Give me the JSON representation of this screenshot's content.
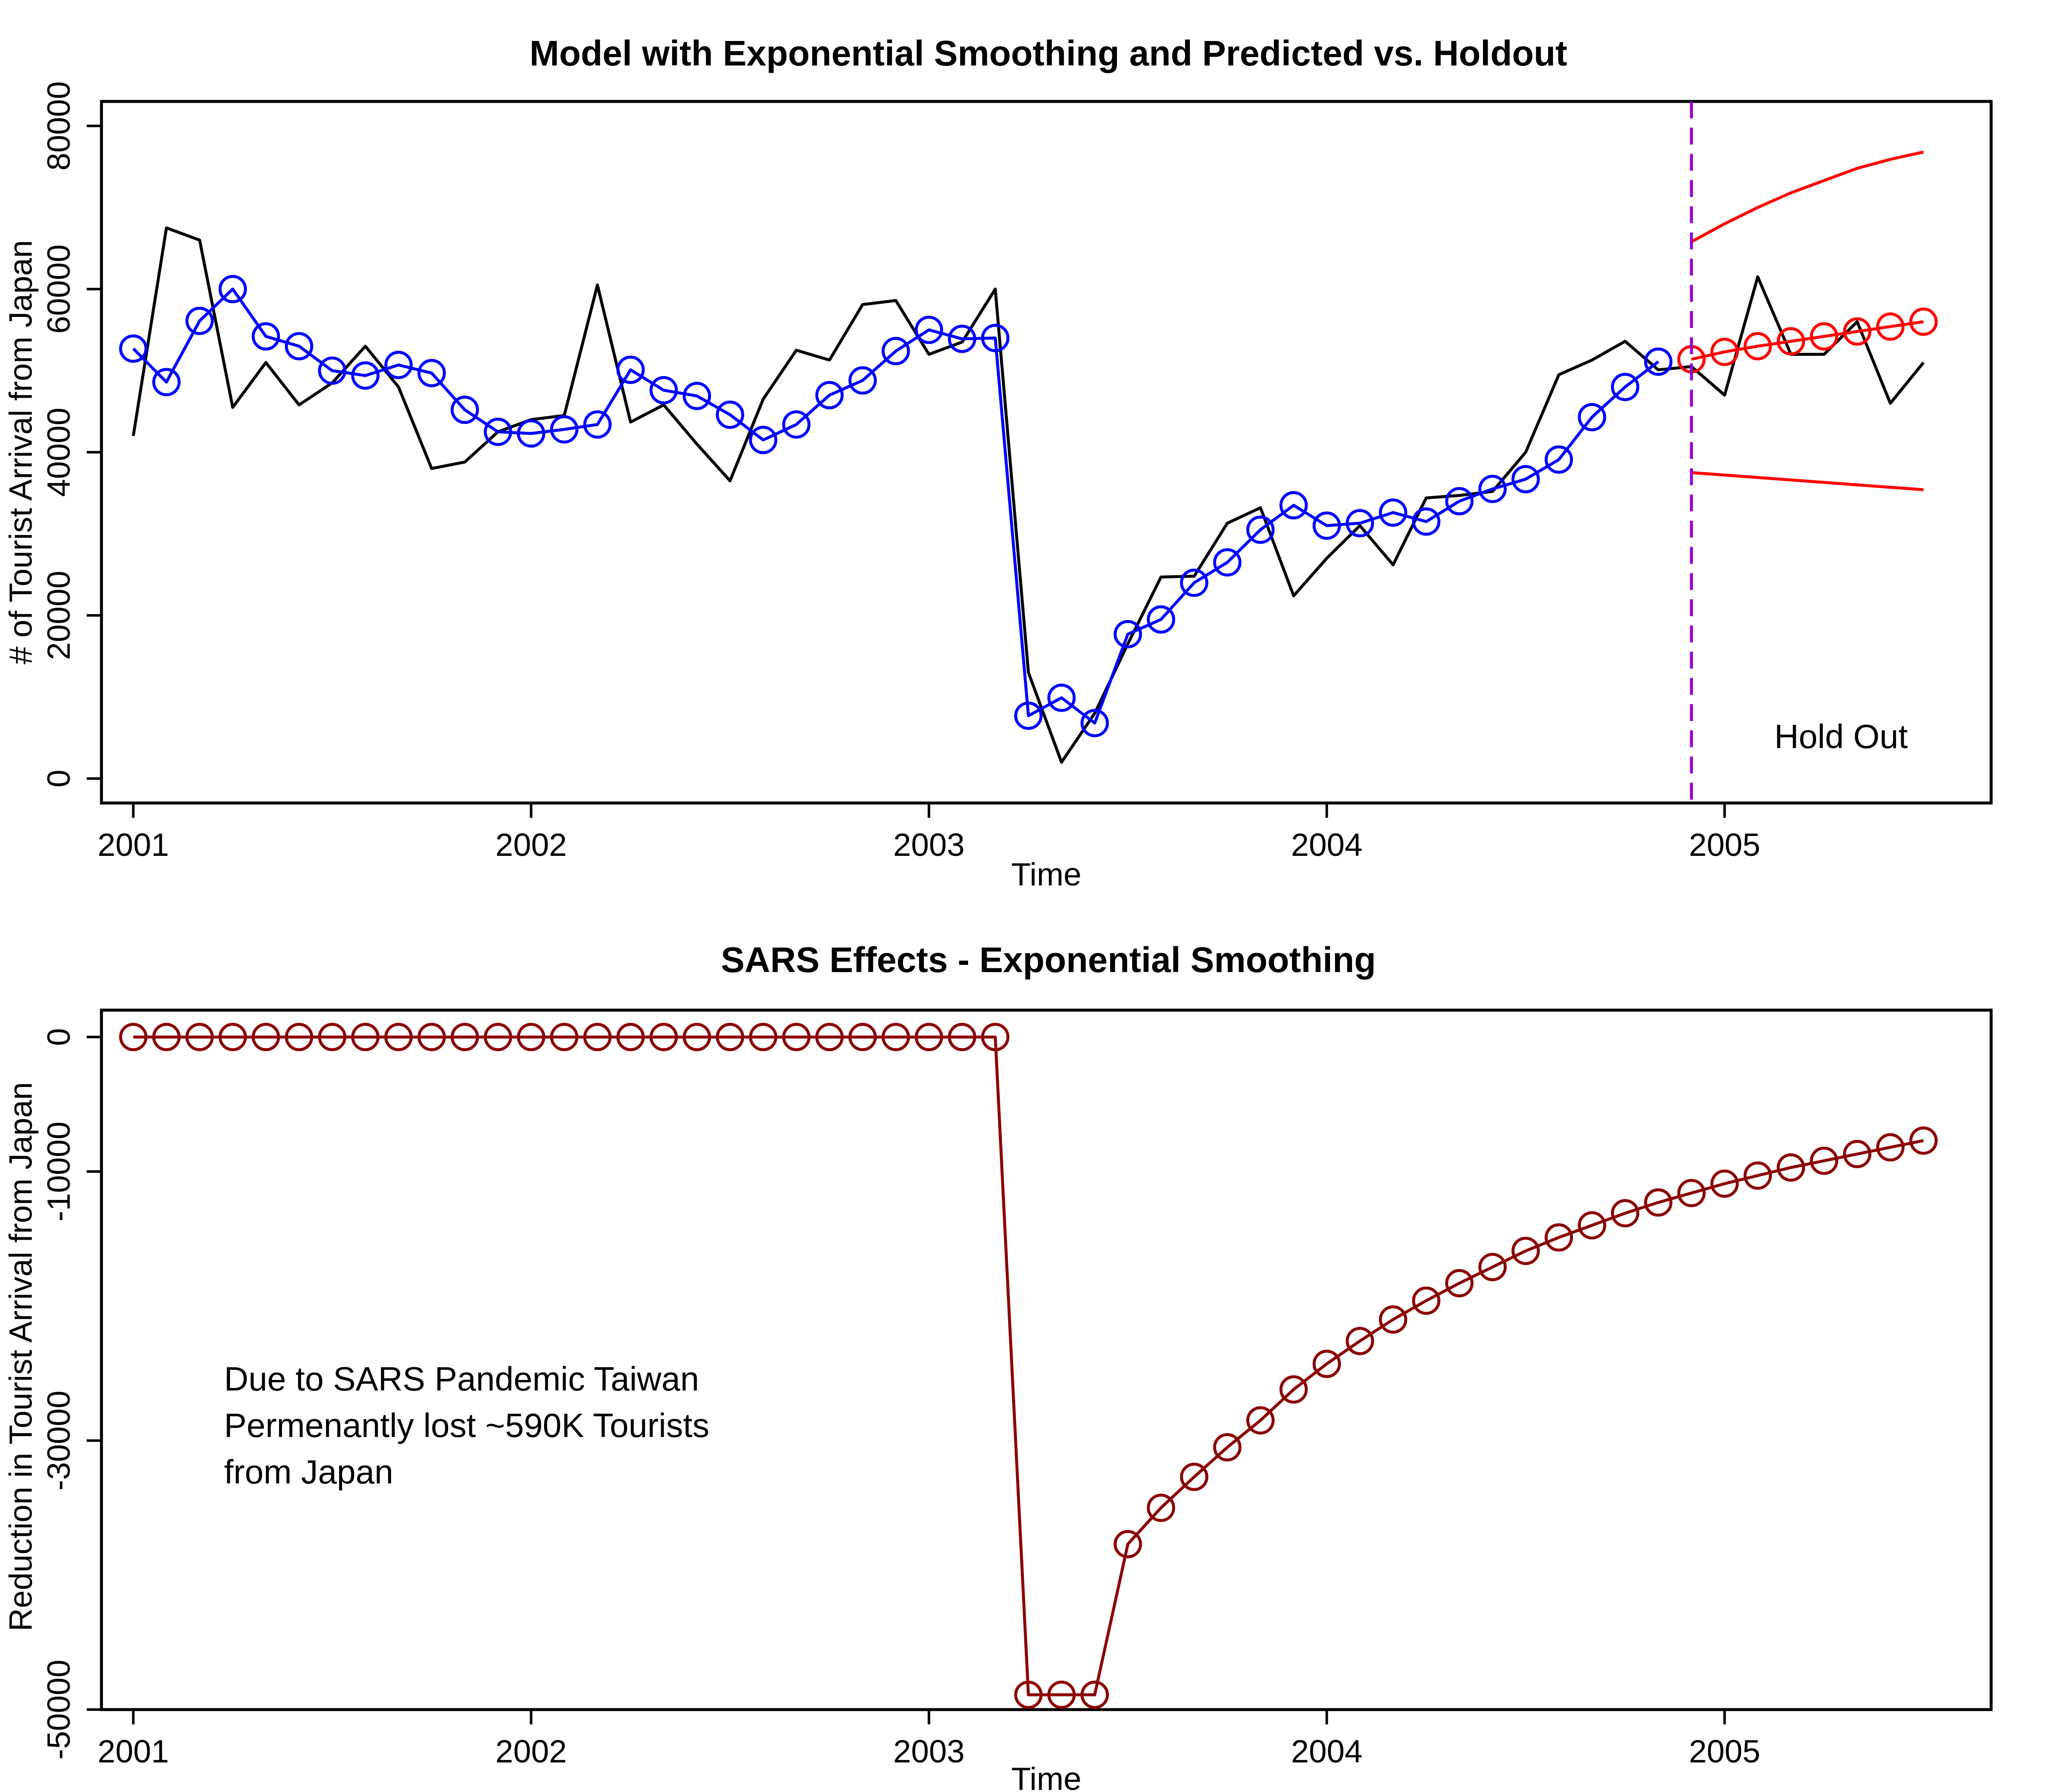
{
  "chart_data": [
    {
      "type": "line",
      "title": "Model with Exponential Smoothing and Predicted vs. Holdout",
      "xlabel": "Time",
      "ylabel": "# of Tourist Arrival from Japan",
      "xlim": [
        2000.92,
        2005.67
      ],
      "ylim": [
        -3000,
        83000
      ],
      "x_ticks": [
        2001,
        2002,
        2003,
        2004,
        2005
      ],
      "x_tick_labels": [
        "2001",
        "2002",
        "2003",
        "2004",
        "2005"
      ],
      "y_ticks": [
        0,
        20000,
        40000,
        60000,
        80000
      ],
      "y_tick_labels": [
        "0",
        "20000",
        "40000",
        "60000",
        "80000"
      ],
      "holdout_line_x": 2004.9167,
      "annotation": "Hold Out",
      "series": [
        {
          "style": "line",
          "color": "#000000",
          "x": [
            2001.0,
            2001.0833,
            2001.1667,
            2001.25,
            2001.3333,
            2001.4167,
            2001.5,
            2001.5833,
            2001.6667,
            2001.75,
            2001.8333,
            2001.9167,
            2002.0,
            2002.0833,
            2002.1667,
            2002.25,
            2002.3333,
            2002.4167,
            2002.5,
            2002.5833,
            2002.6667,
            2002.75,
            2002.8333,
            2002.9167,
            2003.0,
            2003.0833,
            2003.1667,
            2003.25,
            2003.3333,
            2003.4167,
            2003.5,
            2003.5833,
            2003.6667,
            2003.75,
            2003.8333,
            2003.9167,
            2004.0,
            2004.0833,
            2004.1667,
            2004.25,
            2004.3333,
            2004.4167,
            2004.5,
            2004.5833,
            2004.6667,
            2004.75,
            2004.8333,
            2004.9167,
            2005.0,
            2005.0833,
            2005.1667,
            2005.25,
            2005.3333,
            2005.4167,
            2005.5
          ],
          "values": [
            42000,
            67500,
            66000,
            45500,
            51000,
            45800,
            48500,
            53000,
            48000,
            38000,
            38800,
            42500,
            44000,
            44500,
            60500,
            43700,
            45800,
            41000,
            36500,
            46500,
            52500,
            51300,
            58100,
            58600,
            52000,
            53500,
            60000,
            13000,
            2000,
            8000,
            16500,
            24700,
            24800,
            31300,
            33200,
            22400,
            27000,
            31000,
            26200,
            34400,
            34700,
            35200,
            40000,
            49500,
            51300,
            53600,
            50100,
            50500,
            47000,
            61500,
            52000,
            52000,
            56000,
            46000,
            51000
          ]
        },
        {
          "style": "line+circle",
          "color": "#0000ff",
          "x": [
            2001.0,
            2001.0833,
            2001.1667,
            2001.25,
            2001.3333,
            2001.4167,
            2001.5,
            2001.5833,
            2001.6667,
            2001.75,
            2001.8333,
            2001.9167,
            2002.0,
            2002.0833,
            2002.1667,
            2002.25,
            2002.3333,
            2002.4167,
            2002.5,
            2002.5833,
            2002.6667,
            2002.75,
            2002.8333,
            2002.9167,
            2003.0,
            2003.0833,
            2003.1667,
            2003.25,
            2003.3333,
            2003.4167,
            2003.5,
            2003.5833,
            2003.6667,
            2003.75,
            2003.8333,
            2003.9167,
            2004.0,
            2004.0833,
            2004.1667,
            2004.25,
            2004.3333,
            2004.4167,
            2004.5,
            2004.5833,
            2004.6667,
            2004.75,
            2004.8333
          ],
          "values": [
            52700,
            48600,
            56100,
            60000,
            54200,
            53000,
            50000,
            49400,
            50700,
            49700,
            45200,
            42500,
            42300,
            42800,
            43400,
            50100,
            47600,
            46900,
            44600,
            41500,
            43400,
            47000,
            48800,
            52400,
            55000,
            53900,
            54000,
            7700,
            9900,
            6800,
            17700,
            19500,
            24000,
            26500,
            30500,
            33500,
            31000,
            31300,
            32600,
            31500,
            34000,
            35500,
            36700,
            39100,
            44300,
            48000,
            51100
          ]
        },
        {
          "style": "line+circle",
          "color": "#ff0000",
          "x": [
            2004.9167,
            2005.0,
            2005.0833,
            2005.1667,
            2005.25,
            2005.3333,
            2005.4167,
            2005.5
          ],
          "values": [
            51400,
            52300,
            53000,
            53600,
            54200,
            54800,
            55400,
            56000
          ]
        },
        {
          "style": "line",
          "color": "#ff0000",
          "x": [
            2004.9167,
            2005.0,
            2005.0833,
            2005.1667,
            2005.25,
            2005.3333,
            2005.4167,
            2005.5
          ],
          "values": [
            65800,
            68000,
            70000,
            71800,
            73300,
            74800,
            75900,
            76800
          ]
        },
        {
          "style": "line",
          "color": "#ff0000",
          "x": [
            2004.9167,
            2005.0,
            2005.0833,
            2005.1667,
            2005.25,
            2005.3333,
            2005.4167,
            2005.5
          ],
          "values": [
            37500,
            37200,
            36900,
            36600,
            36300,
            36000,
            35700,
            35400
          ]
        }
      ]
    },
    {
      "type": "line",
      "title": "SARS Effects - Exponential Smoothing",
      "xlabel": "Time",
      "ylabel": "Reduction in Tourist Arrival from Japan",
      "xlim": [
        2000.92,
        2005.67
      ],
      "ylim": [
        -50000,
        2000
      ],
      "x_ticks": [
        2001,
        2002,
        2003,
        2004,
        2005
      ],
      "x_tick_labels": [
        "2001",
        "2002",
        "2003",
        "2004",
        "2005"
      ],
      "y_ticks": [
        0,
        -10000,
        -30000,
        -50000
      ],
      "y_tick_labels": [
        "0",
        "-10000",
        "-30000",
        "-50000"
      ],
      "annotation_lines": [
        "Due to SARS Pandemic Taiwan",
        "Permenantly lost ~590K Tourists",
        "from Japan"
      ],
      "series": [
        {
          "style": "line+circle",
          "color": "#8b0000",
          "x": [
            2001.0,
            2001.0833,
            2001.1667,
            2001.25,
            2001.3333,
            2001.4167,
            2001.5,
            2001.5833,
            2001.6667,
            2001.75,
            2001.8333,
            2001.9167,
            2002.0,
            2002.0833,
            2002.1667,
            2002.25,
            2002.3333,
            2002.4167,
            2002.5,
            2002.5833,
            2002.6667,
            2002.75,
            2002.8333,
            2002.9167,
            2003.0,
            2003.0833,
            2003.1667,
            2003.25,
            2003.3333,
            2003.4167,
            2003.5,
            2003.5833,
            2003.6667,
            2003.75,
            2003.8333,
            2003.9167,
            2004.0,
            2004.0833,
            2004.1667,
            2004.25,
            2004.3333,
            2004.4167,
            2004.5,
            2004.5833,
            2004.6667,
            2004.75,
            2004.8333,
            2004.9167,
            2005.0,
            2005.0833,
            2005.1667,
            2005.25,
            2005.3333,
            2005.4167,
            2005.5
          ],
          "values": [
            0,
            0,
            0,
            0,
            0,
            0,
            0,
            0,
            0,
            0,
            0,
            0,
            0,
            0,
            0,
            0,
            0,
            0,
            0,
            0,
            0,
            0,
            0,
            0,
            0,
            0,
            0,
            -48900,
            -48900,
            -48900,
            -37700,
            -35000,
            -32700,
            -30500,
            -28500,
            -26200,
            -24300,
            -22600,
            -21000,
            -19600,
            -18300,
            -17100,
            -15900,
            -14900,
            -14000,
            -13100,
            -12300,
            -11600,
            -10900,
            -10300,
            -9700,
            -9200,
            -8700,
            -8200,
            -7700
          ]
        }
      ]
    }
  ]
}
